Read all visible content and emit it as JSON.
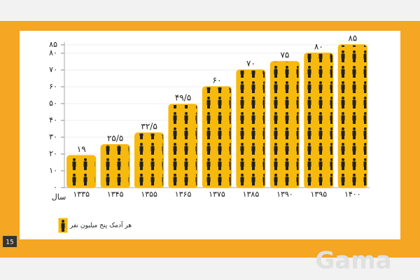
{
  "chart_data": {
    "type": "bar",
    "x_label": "سال",
    "categories": [
      "۱۳۳۵",
      "۱۳۴۵",
      "۱۳۵۵",
      "۱۳۶۵",
      "۱۳۷۵",
      "۱۳۸۵",
      "۱۳۹۰",
      "۱۳۹۵",
      "۱۴۰۰"
    ],
    "series": [
      {
        "name": "هر آدمک پنج میلیون نفر",
        "color": "#f6b90c",
        "values": [
          19,
          25.5,
          32.5,
          49.5,
          60,
          70,
          75,
          80,
          85
        ],
        "value_labels": [
          "۱۹",
          "۲۵/۵",
          "۳۲/۵",
          "۴۹/۵",
          "۶۰",
          "۷۰",
          "۷۵",
          "۸۰",
          "۸۵"
        ]
      }
    ],
    "ylim": [
      0,
      85
    ],
    "yticks": [
      {
        "value": 0,
        "label": "۰"
      },
      {
        "value": 10,
        "label": "۱۰"
      },
      {
        "value": 20,
        "label": "۲۰"
      },
      {
        "value": 30,
        "label": "۳۰"
      },
      {
        "value": 40,
        "label": "۴۰"
      },
      {
        "value": 50,
        "label": "۵۰"
      },
      {
        "value": 60,
        "label": "۶۰"
      },
      {
        "value": 70,
        "label": "۷۰"
      },
      {
        "value": 80,
        "label": "۸۰"
      },
      {
        "value": 85,
        "label": "۸۵"
      }
    ],
    "grid": true
  },
  "slide": {
    "page_number": "15",
    "watermark": "Gama"
  }
}
